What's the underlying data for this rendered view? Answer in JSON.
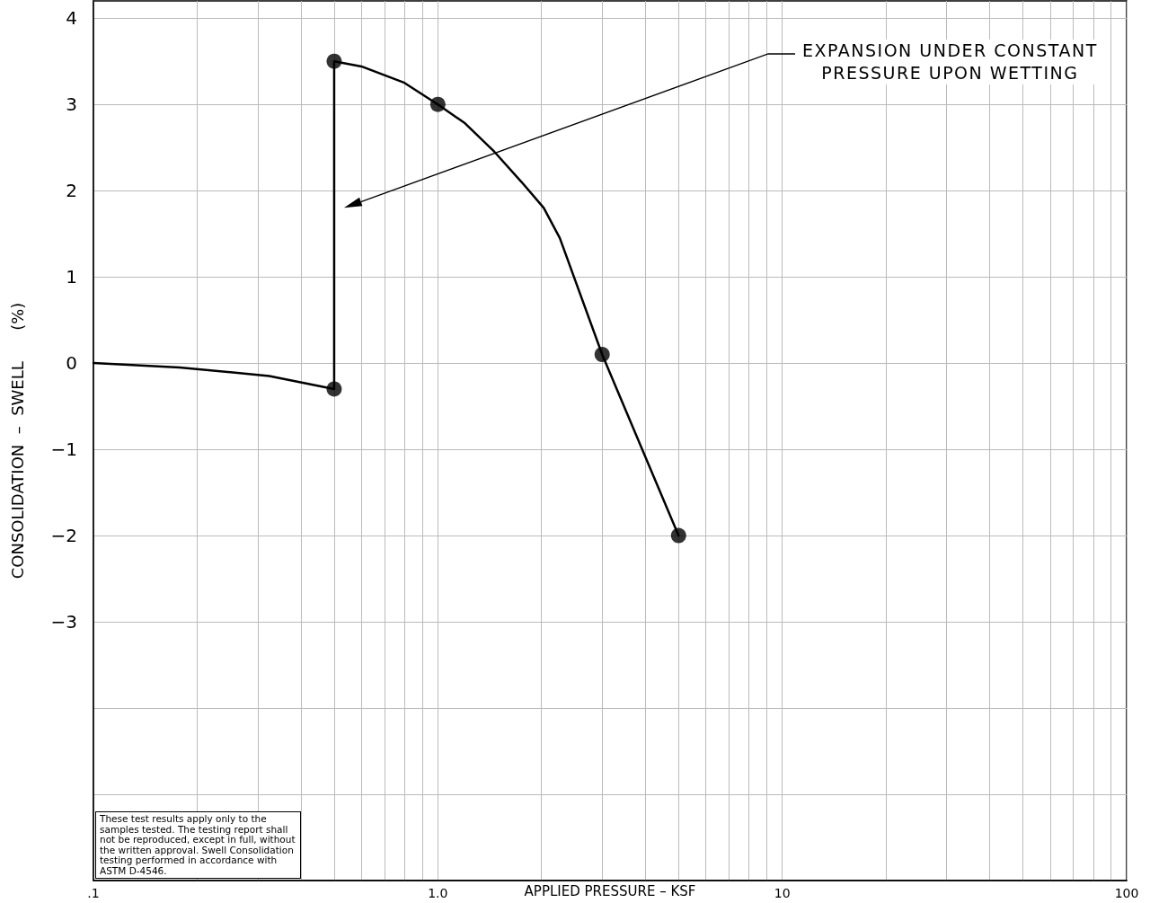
{
  "chart_data": {
    "type": "line",
    "xlabel": "APPLIED PRESSURE – KSF",
    "ylabel": "CONSOLIDATION  –  SWELL      (%)",
    "log": "x",
    "xlim": [
      0.1,
      100
    ],
    "xticks": [
      {
        "value": 0.1,
        "label": ".1"
      },
      {
        "value": 1,
        "label": "1.0"
      },
      10,
      100
    ],
    "ylim": [
      -6,
      4.2
    ],
    "yticks": [
      {
        "value": -5,
        "label": null
      },
      {
        "value": -4,
        "label": null
      },
      -3,
      -2,
      -1,
      0,
      1,
      2,
      3,
      4
    ],
    "grid": true,
    "series": [
      {
        "type": "line",
        "marker": "none",
        "line_style": "solid",
        "color": "#000000",
        "x": [
          0.1,
          0.178,
          0.324,
          0.5,
          0.5,
          0.6,
          0.8,
          1.0,
          1.2,
          1.46,
          1.75,
          2.03,
          2.26,
          3.0,
          5.0
        ],
        "values": [
          0,
          -0.05,
          -0.15,
          -0.3,
          3.5,
          3.44,
          3.25,
          3.0,
          2.78,
          2.45,
          2.1,
          1.8,
          1.45,
          0.1,
          -2.0
        ]
      },
      {
        "type": "scatter",
        "marker": "circle",
        "color": "#000000",
        "x": [
          0.5,
          0.5,
          1.0,
          3.0,
          5.0
        ],
        "values": [
          -0.3,
          3.5,
          3.0,
          0.1,
          -2.0
        ]
      }
    ],
    "annotations": [
      "EXPANSION UNDER CONSTANT\nPRESSURE UPON WETTING",
      "These test results apply only to the samples tested. The testing report shall not be reproduced, except in full, without the written approval. Swell Consolidation testing performed in accordance with ASTM D-4546."
    ]
  }
}
